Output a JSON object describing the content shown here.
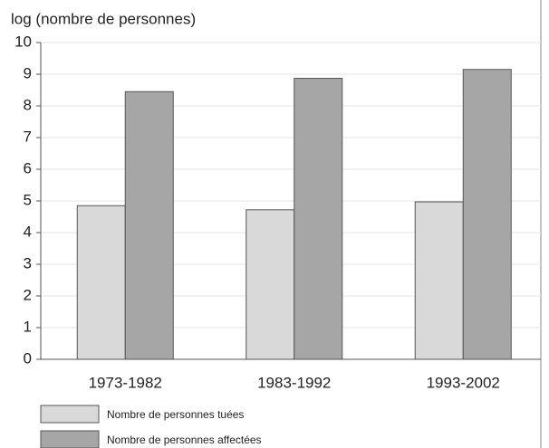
{
  "chart_data": {
    "type": "bar",
    "y_label": "log (nombre de personnes)",
    "categories": [
      "1973-1982",
      "1983-1992",
      "1993-2002"
    ],
    "series": [
      {
        "name": "Nombre de personnes tuées",
        "color": "#d9d9d9",
        "values": [
          4.85,
          4.72,
          4.97
        ]
      },
      {
        "name": "Nombre de personnes affectées",
        "color": "#a6a6a6",
        "values": [
          8.45,
          8.87,
          9.15
        ]
      }
    ],
    "ylim": [
      0,
      10
    ],
    "yticks": [
      0,
      1,
      2,
      3,
      4,
      5,
      6,
      7,
      8,
      9,
      10
    ],
    "grid": true,
    "legend": "bottom"
  }
}
